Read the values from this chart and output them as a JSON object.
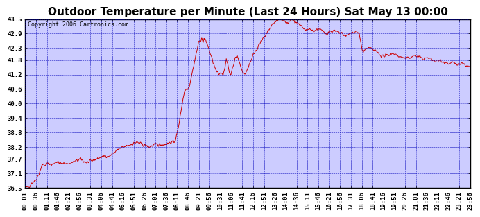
{
  "title": "Outdoor Temperature per Minute (Last 24 Hours) Sat May 13 00:00",
  "copyright": "Copyright 2006 Cartronics.com",
  "bg_color": "#FFFFFF",
  "plot_bg_color": "#CCCCFF",
  "line_color": "#CC0000",
  "grid_color": "#0000BB",
  "y_ticks": [
    36.5,
    37.1,
    37.7,
    38.2,
    38.8,
    39.4,
    40.0,
    40.6,
    41.2,
    41.8,
    42.3,
    42.9,
    43.5
  ],
  "ylim": [
    36.5,
    43.5
  ],
  "x_tick_labels": [
    "00:01",
    "00:36",
    "01:11",
    "01:46",
    "02:21",
    "02:56",
    "03:31",
    "04:06",
    "04:41",
    "05:16",
    "05:51",
    "06:26",
    "07:01",
    "07:36",
    "08:11",
    "08:46",
    "09:21",
    "09:56",
    "10:31",
    "11:06",
    "11:41",
    "12:16",
    "12:51",
    "13:26",
    "14:01",
    "14:36",
    "15:11",
    "15:46",
    "16:21",
    "16:56",
    "17:31",
    "18:06",
    "18:41",
    "19:16",
    "19:51",
    "20:26",
    "21:01",
    "21:36",
    "22:11",
    "22:46",
    "23:21",
    "23:56"
  ],
  "title_fontsize": 11,
  "tick_fontsize": 6.5,
  "copyright_fontsize": 6,
  "line_width": 0.7,
  "waypoints": [
    [
      0,
      36.55
    ],
    [
      5,
      36.52
    ],
    [
      10,
      36.55
    ],
    [
      15,
      36.6
    ],
    [
      20,
      36.7
    ],
    [
      25,
      36.75
    ],
    [
      30,
      36.8
    ],
    [
      35,
      36.85
    ],
    [
      40,
      37.0
    ],
    [
      45,
      37.1
    ],
    [
      50,
      37.3
    ],
    [
      55,
      37.45
    ],
    [
      60,
      37.5
    ],
    [
      65,
      37.4
    ],
    [
      70,
      37.5
    ],
    [
      75,
      37.55
    ],
    [
      80,
      37.5
    ],
    [
      85,
      37.45
    ],
    [
      90,
      37.5
    ],
    [
      95,
      37.55
    ],
    [
      100,
      37.6
    ],
    [
      110,
      37.55
    ],
    [
      120,
      37.5
    ],
    [
      130,
      37.55
    ],
    [
      140,
      37.5
    ],
    [
      150,
      37.55
    ],
    [
      160,
      37.6
    ],
    [
      170,
      37.65
    ],
    [
      180,
      37.7
    ],
    [
      190,
      37.6
    ],
    [
      200,
      37.55
    ],
    [
      210,
      37.6
    ],
    [
      220,
      37.65
    ],
    [
      230,
      37.7
    ],
    [
      240,
      37.75
    ],
    [
      250,
      37.8
    ],
    [
      260,
      37.85
    ],
    [
      270,
      37.8
    ],
    [
      280,
      37.9
    ],
    [
      290,
      38.0
    ],
    [
      300,
      38.1
    ],
    [
      310,
      38.15
    ],
    [
      320,
      38.2
    ],
    [
      330,
      38.25
    ],
    [
      340,
      38.3
    ],
    [
      350,
      38.35
    ],
    [
      360,
      38.4
    ],
    [
      370,
      38.35
    ],
    [
      380,
      38.3
    ],
    [
      390,
      38.25
    ],
    [
      400,
      38.2
    ],
    [
      410,
      38.25
    ],
    [
      420,
      38.3
    ],
    [
      430,
      38.3
    ],
    [
      440,
      38.3
    ],
    [
      450,
      38.3
    ],
    [
      460,
      38.35
    ],
    [
      470,
      38.4
    ],
    [
      480,
      38.4
    ],
    [
      485,
      38.5
    ],
    [
      490,
      38.7
    ],
    [
      495,
      39.0
    ],
    [
      500,
      39.4
    ],
    [
      505,
      39.8
    ],
    [
      510,
      40.2
    ],
    [
      515,
      40.5
    ],
    [
      520,
      40.6
    ],
    [
      525,
      40.65
    ],
    [
      530,
      40.7
    ],
    [
      535,
      41.0
    ],
    [
      540,
      41.3
    ],
    [
      545,
      41.6
    ],
    [
      550,
      41.9
    ],
    [
      555,
      42.2
    ],
    [
      560,
      42.5
    ],
    [
      565,
      42.6
    ],
    [
      570,
      42.7
    ],
    [
      572,
      42.65
    ],
    [
      575,
      42.55
    ],
    [
      578,
      42.7
    ],
    [
      580,
      42.65
    ],
    [
      583,
      42.6
    ],
    [
      585,
      42.55
    ],
    [
      588,
      42.5
    ],
    [
      590,
      42.4
    ],
    [
      595,
      42.2
    ],
    [
      600,
      42.0
    ],
    [
      605,
      41.8
    ],
    [
      610,
      41.6
    ],
    [
      615,
      41.4
    ],
    [
      620,
      41.3
    ],
    [
      625,
      41.2
    ],
    [
      630,
      41.25
    ],
    [
      635,
      41.3
    ],
    [
      640,
      41.2
    ],
    [
      645,
      41.5
    ],
    [
      650,
      41.8
    ],
    [
      655,
      41.6
    ],
    [
      660,
      41.3
    ],
    [
      665,
      41.2
    ],
    [
      670,
      41.5
    ],
    [
      675,
      41.7
    ],
    [
      680,
      41.9
    ],
    [
      685,
      42.0
    ],
    [
      690,
      41.8
    ],
    [
      695,
      41.6
    ],
    [
      700,
      41.4
    ],
    [
      705,
      41.3
    ],
    [
      710,
      41.2
    ],
    [
      715,
      41.3
    ],
    [
      720,
      41.5
    ],
    [
      730,
      41.8
    ],
    [
      740,
      42.1
    ],
    [
      750,
      42.3
    ],
    [
      760,
      42.5
    ],
    [
      770,
      42.7
    ],
    [
      780,
      42.9
    ],
    [
      790,
      43.1
    ],
    [
      800,
      43.3
    ],
    [
      810,
      43.4
    ],
    [
      820,
      43.45
    ],
    [
      830,
      43.5
    ],
    [
      840,
      43.4
    ],
    [
      845,
      43.3
    ],
    [
      850,
      43.35
    ],
    [
      855,
      43.4
    ],
    [
      860,
      43.5
    ],
    [
      865,
      43.45
    ],
    [
      870,
      43.4
    ],
    [
      875,
      43.35
    ],
    [
      880,
      43.3
    ],
    [
      890,
      43.2
    ],
    [
      900,
      43.1
    ],
    [
      910,
      43.0
    ],
    [
      915,
      43.05
    ],
    [
      920,
      43.1
    ],
    [
      930,
      43.0
    ],
    [
      940,
      43.05
    ],
    [
      950,
      43.1
    ],
    [
      960,
      43.0
    ],
    [
      965,
      42.95
    ],
    [
      970,
      42.9
    ],
    [
      980,
      42.95
    ],
    [
      990,
      43.0
    ],
    [
      1000,
      43.0
    ],
    [
      1010,
      42.95
    ],
    [
      1020,
      42.9
    ],
    [
      1030,
      42.85
    ],
    [
      1040,
      42.8
    ],
    [
      1050,
      42.9
    ],
    [
      1060,
      42.95
    ],
    [
      1070,
      43.0
    ],
    [
      1075,
      42.95
    ],
    [
      1080,
      42.9
    ],
    [
      1082,
      42.7
    ],
    [
      1085,
      42.5
    ],
    [
      1088,
      42.3
    ],
    [
      1090,
      42.2
    ],
    [
      1093,
      42.1
    ],
    [
      1095,
      42.2
    ],
    [
      1100,
      42.25
    ],
    [
      1110,
      42.3
    ],
    [
      1120,
      42.25
    ],
    [
      1130,
      42.2
    ],
    [
      1140,
      42.1
    ],
    [
      1150,
      42.0
    ],
    [
      1160,
      41.95
    ],
    [
      1170,
      42.0
    ],
    [
      1180,
      42.05
    ],
    [
      1190,
      42.1
    ],
    [
      1200,
      42.0
    ],
    [
      1210,
      41.95
    ],
    [
      1220,
      41.9
    ],
    [
      1230,
      41.85
    ],
    [
      1240,
      41.9
    ],
    [
      1250,
      41.95
    ],
    [
      1260,
      42.0
    ],
    [
      1270,
      41.95
    ],
    [
      1280,
      41.9
    ],
    [
      1290,
      41.85
    ],
    [
      1300,
      41.9
    ],
    [
      1310,
      41.85
    ],
    [
      1320,
      41.8
    ],
    [
      1330,
      41.75
    ],
    [
      1340,
      41.8
    ],
    [
      1350,
      41.75
    ],
    [
      1360,
      41.7
    ],
    [
      1370,
      41.65
    ],
    [
      1380,
      41.7
    ],
    [
      1390,
      41.65
    ],
    [
      1400,
      41.6
    ],
    [
      1410,
      41.65
    ],
    [
      1420,
      41.6
    ],
    [
      1430,
      41.55
    ],
    [
      1439,
      41.5
    ]
  ]
}
